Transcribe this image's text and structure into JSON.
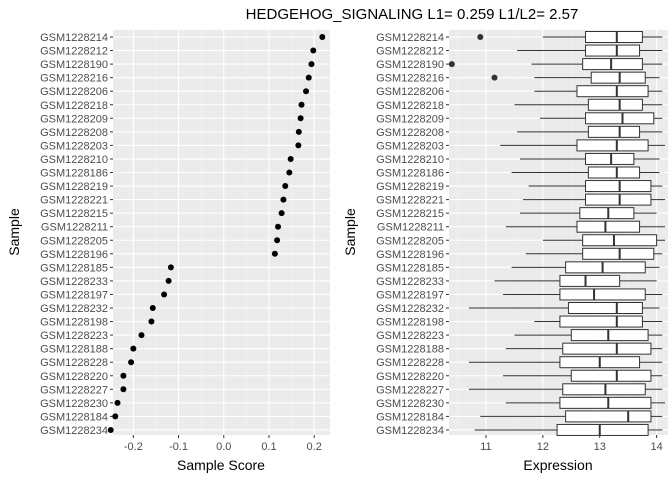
{
  "title": "HEDGEHOG_SIGNALING L1= 0.259 L1/L2= 2.57",
  "samples": [
    "GSM1228214",
    "GSM1228212",
    "GSM1228190",
    "GSM1228216",
    "GSM1228206",
    "GSM1228218",
    "GSM1228209",
    "GSM1228208",
    "GSM1228203",
    "GSM1228210",
    "GSM1228186",
    "GSM1228219",
    "GSM1228221",
    "GSM1228215",
    "GSM1228211",
    "GSM1228205",
    "GSM1228196",
    "GSM1228185",
    "GSM1228233",
    "GSM1228197",
    "GSM1228232",
    "GSM1228198",
    "GSM1228223",
    "GSM1228188",
    "GSM1228228",
    "GSM1228220",
    "GSM1228227",
    "GSM1228230",
    "GSM1228184",
    "GSM1228234"
  ],
  "chart_data": [
    {
      "type": "scatter",
      "xlabel": "Sample Score",
      "ylabel": "Sample",
      "xlim": [
        -0.245,
        0.235
      ],
      "xticks": [
        -0.2,
        -0.1,
        0.0,
        0.1,
        0.2
      ],
      "xtick_labels": [
        "-0.2",
        "-0.1",
        "0.0",
        "0.1",
        "0.2"
      ],
      "grid": true,
      "values": [
        0.218,
        0.198,
        0.194,
        0.188,
        0.182,
        0.172,
        0.17,
        0.166,
        0.165,
        0.148,
        0.145,
        0.136,
        0.132,
        0.128,
        0.12,
        0.118,
        0.113,
        -0.117,
        -0.122,
        -0.132,
        -0.157,
        -0.16,
        -0.182,
        -0.2,
        -0.205,
        -0.222,
        -0.222,
        -0.235,
        -0.24,
        -0.25
      ]
    },
    {
      "type": "box",
      "xlabel": "Expression",
      "ylabel": "Sample",
      "xlim": [
        10.35,
        14.2
      ],
      "xticks": [
        11,
        12,
        13,
        14
      ],
      "xtick_labels": [
        "11",
        "12",
        "13",
        "14"
      ],
      "grid": true,
      "boxes": [
        {
          "whisker_low": 12.0,
          "q1": 12.75,
          "median": 13.3,
          "q3": 13.75,
          "whisker_high": 14.1,
          "outliers": [
            10.9
          ]
        },
        {
          "whisker_low": 11.55,
          "q1": 12.75,
          "median": 13.3,
          "q3": 13.7,
          "whisker_high": 14.1,
          "outliers": []
        },
        {
          "whisker_low": 11.8,
          "q1": 12.7,
          "median": 13.2,
          "q3": 13.75,
          "whisker_high": 14.1,
          "outliers": [
            10.4
          ]
        },
        {
          "whisker_low": 11.85,
          "q1": 12.85,
          "median": 13.35,
          "q3": 13.8,
          "whisker_high": 14.05,
          "outliers": [
            11.15
          ]
        },
        {
          "whisker_low": 11.85,
          "q1": 12.6,
          "median": 13.3,
          "q3": 13.85,
          "whisker_high": 14.1,
          "outliers": []
        },
        {
          "whisker_low": 11.5,
          "q1": 12.8,
          "median": 13.35,
          "q3": 13.75,
          "whisker_high": 14.1,
          "outliers": []
        },
        {
          "whisker_low": 11.95,
          "q1": 12.75,
          "median": 13.4,
          "q3": 13.95,
          "whisker_high": 14.1,
          "outliers": []
        },
        {
          "whisker_low": 11.55,
          "q1": 12.8,
          "median": 13.35,
          "q3": 13.7,
          "whisker_high": 14.1,
          "outliers": []
        },
        {
          "whisker_low": 11.25,
          "q1": 12.6,
          "median": 13.3,
          "q3": 13.85,
          "whisker_high": 14.15,
          "outliers": []
        },
        {
          "whisker_low": 11.6,
          "q1": 12.75,
          "median": 13.2,
          "q3": 13.6,
          "whisker_high": 14.05,
          "outliers": []
        },
        {
          "whisker_low": 11.45,
          "q1": 12.8,
          "median": 13.3,
          "q3": 13.7,
          "whisker_high": 14.05,
          "outliers": []
        },
        {
          "whisker_low": 11.75,
          "q1": 12.75,
          "median": 13.35,
          "q3": 13.9,
          "whisker_high": 14.1,
          "outliers": []
        },
        {
          "whisker_low": 11.65,
          "q1": 12.75,
          "median": 13.35,
          "q3": 13.9,
          "whisker_high": 14.15,
          "outliers": []
        },
        {
          "whisker_low": 11.6,
          "q1": 12.65,
          "median": 13.15,
          "q3": 13.6,
          "whisker_high": 14.0,
          "outliers": []
        },
        {
          "whisker_low": 11.35,
          "q1": 12.6,
          "median": 13.1,
          "q3": 13.7,
          "whisker_high": 14.15,
          "outliers": []
        },
        {
          "whisker_low": 12.0,
          "q1": 12.7,
          "median": 13.25,
          "q3": 14.0,
          "whisker_high": 14.15,
          "outliers": []
        },
        {
          "whisker_low": 11.7,
          "q1": 12.7,
          "median": 13.35,
          "q3": 13.95,
          "whisker_high": 14.1,
          "outliers": []
        },
        {
          "whisker_low": 11.45,
          "q1": 12.4,
          "median": 13.05,
          "q3": 13.8,
          "whisker_high": 14.05,
          "outliers": []
        },
        {
          "whisker_low": 11.15,
          "q1": 12.3,
          "median": 12.75,
          "q3": 13.35,
          "whisker_high": 14.0,
          "outliers": []
        },
        {
          "whisker_low": 11.3,
          "q1": 12.3,
          "median": 12.9,
          "q3": 13.8,
          "whisker_high": 14.1,
          "outliers": []
        },
        {
          "whisker_low": 10.7,
          "q1": 12.45,
          "median": 13.3,
          "q3": 13.75,
          "whisker_high": 14.05,
          "outliers": []
        },
        {
          "whisker_low": 11.85,
          "q1": 12.3,
          "median": 13.3,
          "q3": 13.75,
          "whisker_high": 14.1,
          "outliers": []
        },
        {
          "whisker_low": 11.5,
          "q1": 12.5,
          "median": 13.15,
          "q3": 13.85,
          "whisker_high": 14.1,
          "outliers": []
        },
        {
          "whisker_low": 11.35,
          "q1": 12.35,
          "median": 13.3,
          "q3": 13.9,
          "whisker_high": 14.1,
          "outliers": []
        },
        {
          "whisker_low": 10.7,
          "q1": 12.3,
          "median": 13.0,
          "q3": 13.7,
          "whisker_high": 14.1,
          "outliers": []
        },
        {
          "whisker_low": 11.3,
          "q1": 12.5,
          "median": 13.3,
          "q3": 13.9,
          "whisker_high": 14.1,
          "outliers": []
        },
        {
          "whisker_low": 10.7,
          "q1": 12.35,
          "median": 13.1,
          "q3": 13.8,
          "whisker_high": 14.1,
          "outliers": []
        },
        {
          "whisker_low": 11.35,
          "q1": 12.3,
          "median": 13.15,
          "q3": 13.9,
          "whisker_high": 14.15,
          "outliers": []
        },
        {
          "whisker_low": 10.9,
          "q1": 12.4,
          "median": 13.5,
          "q3": 13.9,
          "whisker_high": 14.1,
          "outliers": []
        },
        {
          "whisker_low": 10.8,
          "q1": 12.25,
          "median": 13.0,
          "q3": 13.85,
          "whisker_high": 14.1,
          "outliers": []
        }
      ]
    }
  ],
  "colors": {
    "panel_bg": "#ebebeb",
    "grid_major": "#ffffff",
    "grid_minor": "#f4f4f4",
    "point": "#000000",
    "box_stroke": "#333333",
    "box_fill": "#ffffff",
    "tick_text": "#4d4d4d"
  }
}
